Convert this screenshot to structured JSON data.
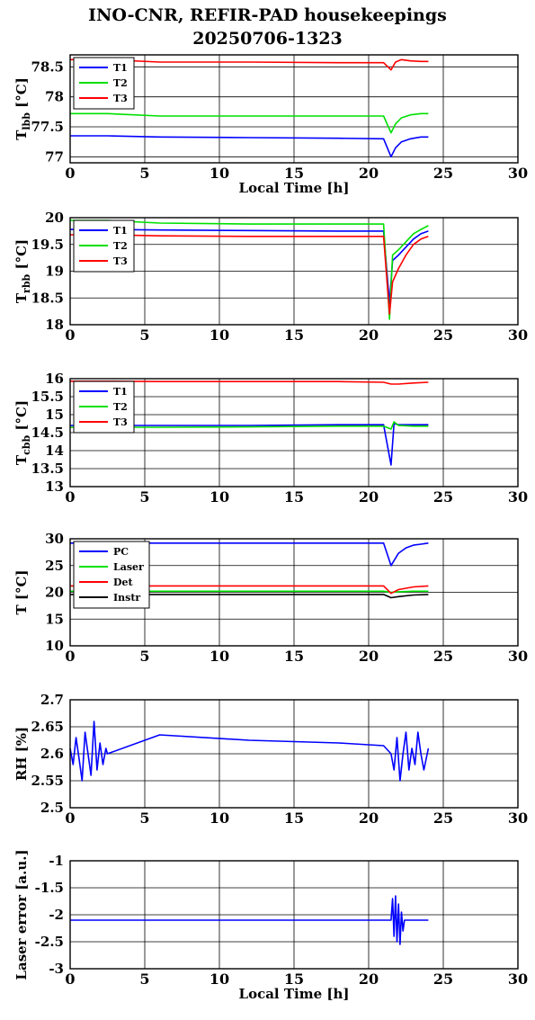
{
  "title_line1": "INO-CNR, REFIR-PAD housekeepings",
  "title_line2": "20250706-1323",
  "colors": {
    "blue": "#0000ff",
    "green": "#00e000",
    "red": "#ff0000",
    "black": "#000000"
  },
  "chart_data": [
    {
      "type": "line",
      "ylabel": "T_lbb [°C]",
      "ylabel_main": "T",
      "ylabel_sub": "lbb",
      "ylabel_rest": " [°C]",
      "xlabel": "Local Time [h]",
      "xlim": [
        0,
        30
      ],
      "ylim": [
        76.9,
        78.7
      ],
      "xticks": [
        0,
        5,
        10,
        15,
        20,
        25,
        30
      ],
      "yticks": [
        77,
        77.5,
        78,
        78.5
      ],
      "ytick_labels": [
        "77",
        "77.5",
        "78",
        "78.5"
      ],
      "grid": true,
      "legend": "top-left",
      "series": [
        {
          "name": "T1",
          "color": "#0000ff",
          "x": [
            0,
            2.5,
            6,
            12,
            18,
            21,
            21.5,
            21.8,
            22.2,
            22.8,
            23.5,
            24
          ],
          "y": [
            77.35,
            77.35,
            77.33,
            77.32,
            77.31,
            77.3,
            77.0,
            77.15,
            77.25,
            77.3,
            77.33,
            77.33
          ]
        },
        {
          "name": "T2",
          "color": "#00e000",
          "x": [
            0,
            2.5,
            6,
            12,
            18,
            21,
            21.5,
            21.8,
            22.2,
            22.8,
            23.5,
            24
          ],
          "y": [
            77.72,
            77.72,
            77.68,
            77.68,
            77.68,
            77.68,
            77.4,
            77.55,
            77.65,
            77.7,
            77.72,
            77.72
          ]
        },
        {
          "name": "T3",
          "color": "#ff0000",
          "x": [
            0,
            2.5,
            6,
            12,
            18,
            21,
            21.5,
            21.8,
            22.2,
            22.8,
            23.5,
            24
          ],
          "y": [
            78.62,
            78.62,
            78.58,
            78.58,
            78.57,
            78.57,
            78.45,
            78.58,
            78.62,
            78.6,
            78.59,
            78.59
          ]
        }
      ]
    },
    {
      "type": "line",
      "ylabel": "T_rbb [°C]",
      "ylabel_main": "T",
      "ylabel_sub": "rbb",
      "ylabel_rest": " [°C]",
      "xlabel": "",
      "xlim": [
        0,
        30
      ],
      "ylim": [
        18,
        20
      ],
      "xticks": [
        0,
        5,
        10,
        15,
        20,
        25,
        30
      ],
      "yticks": [
        18,
        18.5,
        19,
        19.5,
        20
      ],
      "ytick_labels": [
        "18",
        "18.5",
        "19",
        "19.5",
        "20"
      ],
      "grid": true,
      "legend": "top-left",
      "series": [
        {
          "name": "T1",
          "color": "#0000ff",
          "x": [
            0,
            2.5,
            6,
            12,
            18,
            21,
            21.4,
            21.6,
            22,
            22.5,
            23,
            23.5,
            24
          ],
          "y": [
            19.78,
            19.78,
            19.77,
            19.76,
            19.75,
            19.75,
            18.4,
            19.2,
            19.3,
            19.45,
            19.6,
            19.7,
            19.75
          ]
        },
        {
          "name": "T2",
          "color": "#00e000",
          "x": [
            0,
            2.5,
            6,
            12,
            18,
            21,
            21.4,
            21.6,
            22,
            22.5,
            23,
            23.5,
            24
          ],
          "y": [
            19.95,
            19.95,
            19.9,
            19.88,
            19.88,
            19.88,
            18.1,
            19.3,
            19.4,
            19.55,
            19.7,
            19.78,
            19.85
          ]
        },
        {
          "name": "T3",
          "color": "#ff0000",
          "x": [
            0,
            2.5,
            6,
            12,
            18,
            21,
            21.4,
            21.6,
            22,
            22.5,
            23,
            23.5,
            24
          ],
          "y": [
            19.68,
            19.68,
            19.66,
            19.65,
            19.65,
            19.65,
            18.2,
            18.8,
            19.05,
            19.3,
            19.5,
            19.6,
            19.65
          ]
        }
      ]
    },
    {
      "type": "line",
      "ylabel": "T_cbb [°C]",
      "ylabel_main": "T",
      "ylabel_sub": "cbb",
      "ylabel_rest": " [°C]",
      "xlabel": "",
      "xlim": [
        0,
        30
      ],
      "ylim": [
        13,
        16
      ],
      "xticks": [
        0,
        5,
        10,
        15,
        20,
        25,
        30
      ],
      "yticks": [
        13,
        13.5,
        14,
        14.5,
        15,
        15.5,
        16
      ],
      "ytick_labels": [
        "13",
        "13.5",
        "14",
        "14.5",
        "15",
        "15.5",
        "16"
      ],
      "grid": true,
      "legend": "top-left",
      "series": [
        {
          "name": "T1",
          "color": "#0000ff",
          "x": [
            0,
            6,
            12,
            18,
            21,
            21.5,
            21.7,
            22,
            23,
            24
          ],
          "y": [
            14.7,
            14.7,
            14.7,
            14.72,
            14.72,
            13.6,
            14.75,
            14.72,
            14.72,
            14.72
          ]
        },
        {
          "name": "T2",
          "color": "#00e000",
          "x": [
            0,
            6,
            12,
            18,
            21,
            21.5,
            21.7,
            22,
            23,
            24
          ],
          "y": [
            14.65,
            14.65,
            14.66,
            14.68,
            14.68,
            14.6,
            14.8,
            14.7,
            14.68,
            14.68
          ]
        },
        {
          "name": "T3",
          "color": "#ff0000",
          "x": [
            0,
            2.5,
            6,
            12,
            18,
            21,
            21.5,
            22,
            23,
            24
          ],
          "y": [
            15.93,
            15.93,
            15.92,
            15.92,
            15.92,
            15.9,
            15.85,
            15.85,
            15.88,
            15.9
          ]
        }
      ]
    },
    {
      "type": "line",
      "ylabel": "T [°C]",
      "ylabel_main": "T [°C]",
      "ylabel_sub": "",
      "ylabel_rest": "",
      "xlabel": "",
      "xlim": [
        0,
        30
      ],
      "ylim": [
        10,
        30
      ],
      "xticks": [
        0,
        5,
        10,
        15,
        20,
        25,
        30
      ],
      "yticks": [
        10,
        15,
        20,
        25,
        30
      ],
      "ytick_labels": [
        "10",
        "15",
        "20",
        "25",
        "30"
      ],
      "grid": true,
      "legend": "top-left",
      "series": [
        {
          "name": "PC",
          "color": "#0000ff",
          "x": [
            0,
            6,
            12,
            18,
            21,
            21.5,
            22,
            22.5,
            23,
            23.5,
            24
          ],
          "y": [
            29.2,
            29.2,
            29.2,
            29.2,
            29.2,
            25,
            27.3,
            28.3,
            28.8,
            29,
            29.2
          ]
        },
        {
          "name": "Laser",
          "color": "#00e000",
          "x": [
            0,
            6,
            12,
            18,
            21,
            21.5,
            22,
            23,
            24
          ],
          "y": [
            20.2,
            20.2,
            20.2,
            20.2,
            20.2,
            20.0,
            20.1,
            20.2,
            20.2
          ]
        },
        {
          "name": "Det",
          "color": "#ff0000",
          "x": [
            0,
            6,
            12,
            18,
            21,
            21.5,
            22,
            23,
            24
          ],
          "y": [
            21.2,
            21.2,
            21.2,
            21.2,
            21.2,
            19.8,
            20.5,
            21.0,
            21.2
          ]
        },
        {
          "name": "Instr",
          "color": "#000000",
          "x": [
            0,
            6,
            12,
            18,
            21,
            21.5,
            22,
            23,
            24
          ],
          "y": [
            19.6,
            19.6,
            19.6,
            19.6,
            19.6,
            19.0,
            19.2,
            19.5,
            19.6
          ]
        }
      ]
    },
    {
      "type": "line",
      "ylabel": "RH [%]",
      "ylabel_main": "RH [%]",
      "ylabel_sub": "",
      "ylabel_rest": "",
      "xlabel": "",
      "xlim": [
        0,
        30
      ],
      "ylim": [
        2.5,
        2.7
      ],
      "xticks": [
        0,
        5,
        10,
        15,
        20,
        25,
        30
      ],
      "yticks": [
        2.5,
        2.55,
        2.6,
        2.65,
        2.7
      ],
      "ytick_labels": [
        "2.5",
        "2.55",
        "2.6",
        "2.65",
        "2.7"
      ],
      "grid": true,
      "legend": "none",
      "series": [
        {
          "name": "",
          "color": "#0000ff",
          "x": [
            0,
            0.2,
            0.4,
            0.6,
            0.8,
            1.0,
            1.2,
            1.4,
            1.6,
            1.8,
            2.0,
            2.2,
            2.4,
            2.5,
            6,
            12,
            18,
            21,
            21.5,
            21.7,
            21.9,
            22.1,
            22.3,
            22.5,
            22.7,
            22.9,
            23.1,
            23.3,
            23.5,
            23.7,
            24
          ],
          "y": [
            2.61,
            2.58,
            2.63,
            2.59,
            2.55,
            2.64,
            2.6,
            2.56,
            2.66,
            2.57,
            2.62,
            2.58,
            2.61,
            2.6,
            2.635,
            2.625,
            2.62,
            2.615,
            2.6,
            2.57,
            2.63,
            2.55,
            2.6,
            2.64,
            2.57,
            2.61,
            2.58,
            2.64,
            2.6,
            2.57,
            2.61
          ]
        }
      ]
    },
    {
      "type": "line",
      "ylabel": "Laser error [a.u.]",
      "ylabel_main": "Laser error [a.u.]",
      "ylabel_sub": "",
      "ylabel_rest": "",
      "xlabel": "Local Time [h]",
      "xlim": [
        0,
        30
      ],
      "ylim": [
        -3,
        -1
      ],
      "xticks": [
        0,
        5,
        10,
        15,
        20,
        25,
        30
      ],
      "yticks": [
        -3,
        -2.5,
        -2,
        -1.5,
        -1
      ],
      "ytick_labels": [
        "-3",
        "-2.5",
        "-2",
        "-1.5",
        "-1"
      ],
      "grid": true,
      "legend": "none",
      "series": [
        {
          "name": "",
          "color": "#0000ff",
          "x": [
            0,
            2.5,
            6,
            12,
            18,
            21,
            21.5,
            21.6,
            21.7,
            21.8,
            21.9,
            22.0,
            22.1,
            22.2,
            22.3,
            22.4,
            22.6,
            23,
            24
          ],
          "y": [
            -2.1,
            -2.1,
            -2.1,
            -2.1,
            -2.1,
            -2.1,
            -2.1,
            -1.7,
            -2.4,
            -1.65,
            -2.5,
            -1.8,
            -2.55,
            -1.95,
            -2.3,
            -2.1,
            -2.1,
            -2.1,
            -2.1
          ]
        }
      ]
    }
  ]
}
